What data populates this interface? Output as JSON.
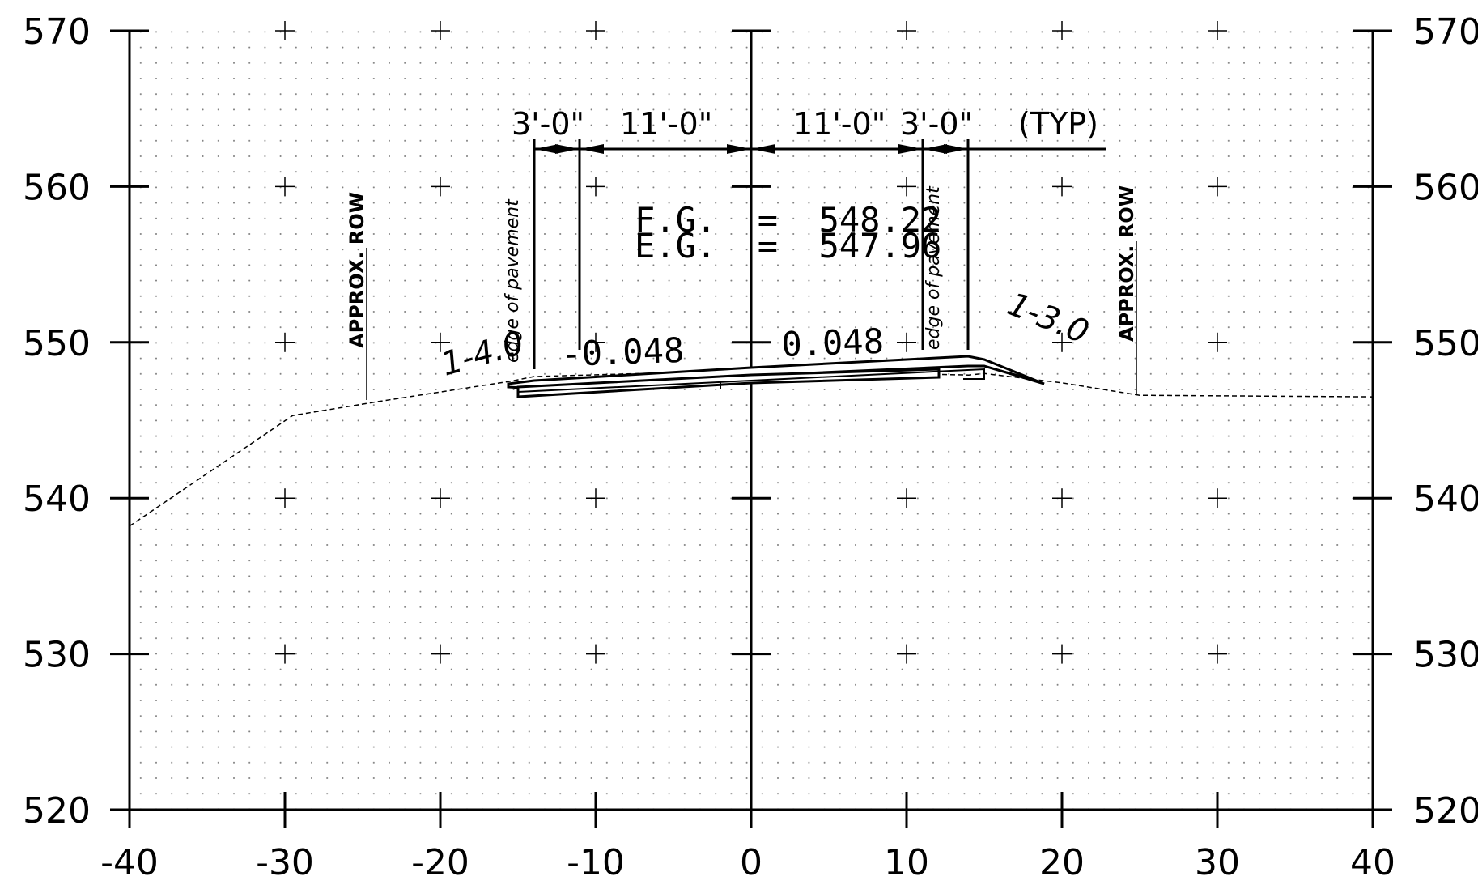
{
  "axes": {
    "x_ticks": [
      "-40",
      "-30",
      "-20",
      "-10",
      "0",
      "10",
      "20",
      "30",
      "40"
    ],
    "y_ticks": [
      "570",
      "560",
      "550",
      "540",
      "530",
      "520"
    ],
    "x_range": [
      -40,
      40
    ],
    "y_range": [
      520,
      570
    ]
  },
  "dimensions": {
    "left_shoulder": "3'-0\"",
    "left_lane": "11'-0\"",
    "right_lane": "11'-0\"",
    "right_shoulder": "3'-0\"",
    "typical": "(TYP)"
  },
  "grades": {
    "fg_line": "F.G.  =  548.22",
    "eg_line": "E.G.  =  547.96"
  },
  "slopes": {
    "left_cross": "-0.048",
    "right_cross": "0.048",
    "left_side": "1-4.0",
    "right_side": "1-3.0"
  },
  "labels": {
    "row_left": "APPROX. ROW",
    "row_right": "APPROX. ROW",
    "edge_left": "edge of pavement",
    "edge_right": "edge of pavement"
  },
  "chart_data": {
    "type": "line",
    "title": "",
    "xlabel": "",
    "ylabel": "",
    "xlim": [
      -40,
      40
    ],
    "ylim": [
      520,
      570
    ],
    "grid": true,
    "series": [
      {
        "x": [
          -40,
          -29.5,
          -24,
          -15.5,
          -14,
          0,
          14,
          15,
          20,
          25,
          40
        ],
        "y": [
          538.2,
          545.3,
          546.2,
          547.5,
          547.8,
          548.2,
          547.9,
          548.0,
          547.4,
          546.6,
          546.5
        ]
      },
      {
        "x": [
          -15.5,
          -14,
          -11,
          0,
          11,
          14,
          15,
          20
        ],
        "y": [
          547.4,
          547.6,
          547.8,
          548.22,
          548.75,
          548.9,
          548.9,
          547.3
        ]
      }
    ]
  }
}
